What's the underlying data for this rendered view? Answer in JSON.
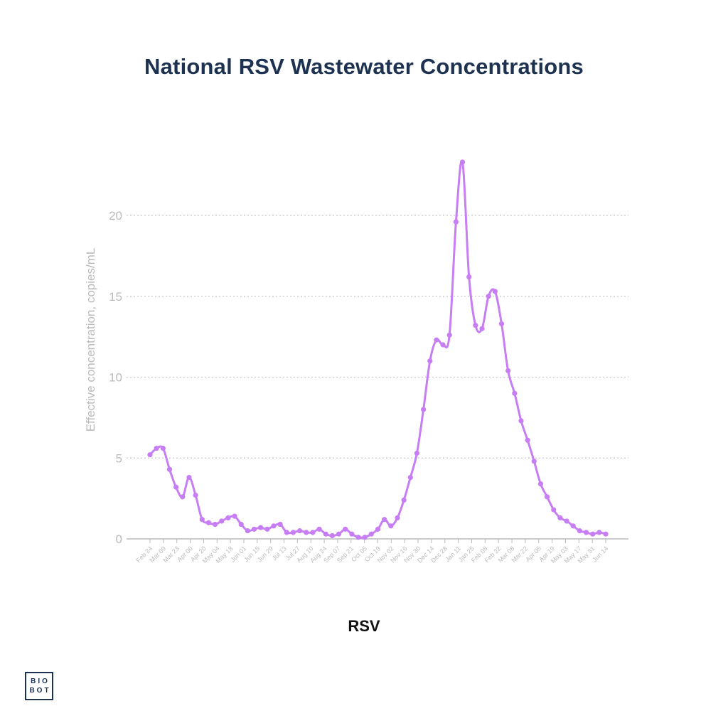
{
  "chart_data": {
    "type": "line",
    "title": "National RSV Wastewater Concentrations",
    "xlabel": "RSV",
    "ylabel": "Effective concentration, copies/mL",
    "ylim": [
      0,
      24
    ],
    "yticks": [
      0,
      5,
      10,
      15,
      20
    ],
    "grid": "horizontal-dotted",
    "xtick_labels": [
      "Feb 24",
      "Mar 09",
      "Mar 23",
      "Apr 06",
      "Apr 20",
      "May 04",
      "May 18",
      "Jun 01",
      "Jun 15",
      "Jun 29",
      "Jul 13",
      "Jul 27",
      "Aug 10",
      "Aug 24",
      "Sep 07",
      "Sep 21",
      "Oct 05",
      "Oct 19",
      "Nov 02",
      "Nov 16",
      "Nov 30",
      "Dec 14",
      "Dec 28",
      "Jan 11",
      "Jan 25",
      "Feb 08",
      "Feb 22",
      "Mar 08",
      "Mar 22",
      "Apr 05",
      "Apr 19",
      "May 03",
      "May 17",
      "May 31",
      "Jun 14"
    ],
    "series": [
      {
        "color": "#c77df3",
        "values": [
          5.2,
          5.6,
          5.6,
          4.3,
          3.2,
          2.6,
          3.8,
          2.7,
          1.2,
          1.0,
          0.9,
          1.1,
          1.3,
          1.4,
          0.9,
          0.5,
          0.6,
          0.7,
          0.6,
          0.8,
          0.9,
          0.4,
          0.4,
          0.5,
          0.4,
          0.4,
          0.6,
          0.3,
          0.2,
          0.3,
          0.6,
          0.3,
          0.1,
          0.1,
          0.3,
          0.6,
          1.2,
          0.8,
          1.3,
          2.4,
          3.8,
          5.3,
          8.0,
          11.0,
          12.3,
          12.0,
          12.6,
          19.6,
          23.3,
          16.2,
          13.2,
          13.0,
          15.0,
          15.3,
          13.3,
          10.4,
          9.0,
          7.3,
          6.1,
          4.8,
          3.4,
          2.6,
          1.8,
          1.3,
          1.1,
          0.8,
          0.5,
          0.4,
          0.3,
          0.4,
          0.3
        ]
      }
    ]
  },
  "logo": {
    "line1": "BIO",
    "line2": "BOT"
  },
  "colors": {
    "title": "#1c3250",
    "axis_text": "#bbbbbb",
    "grid": "#c8c8c8",
    "axis_line": "#bbbbbb"
  }
}
